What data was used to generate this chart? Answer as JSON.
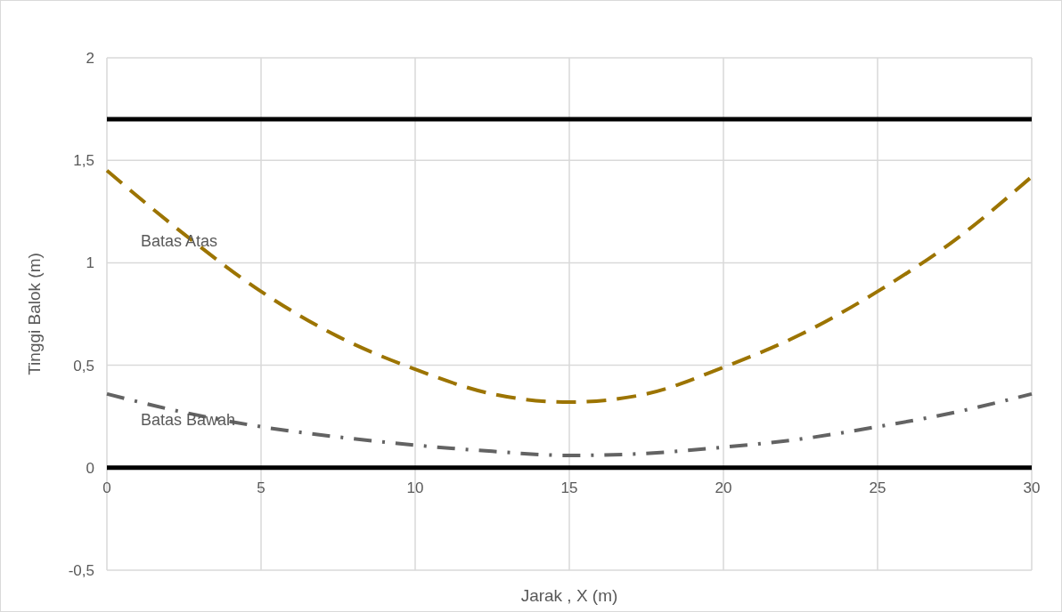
{
  "chart_data": {
    "type": "line",
    "xlabel": "Jarak , X (m)",
    "ylabel": "Tinggi Balok (m)",
    "x": [
      0,
      2.5,
      5,
      7.5,
      10,
      12.5,
      15,
      17.5,
      20,
      22.5,
      25,
      27.5,
      30
    ],
    "series": [
      {
        "name": "Batas Atas",
        "color": "#9c7400",
        "line_style": "dashed",
        "values": [
          1.45,
          1.14,
          0.86,
          0.64,
          0.48,
          0.36,
          0.32,
          0.36,
          0.49,
          0.65,
          0.86,
          1.11,
          1.42
        ]
      },
      {
        "name": "Batas Bawah",
        "color": "#636363",
        "line_style": "dashed",
        "values": [
          0.36,
          0.27,
          0.2,
          0.15,
          0.11,
          0.08,
          0.06,
          0.07,
          0.1,
          0.14,
          0.2,
          0.27,
          0.36
        ]
      }
    ],
    "xlim": [
      0,
      30
    ],
    "xticks": [
      0,
      5,
      10,
      15,
      20,
      25,
      30
    ],
    "ylim": [
      -0.5,
      2
    ],
    "yticks": [
      {
        "value": -0.5,
        "label": "-0,5"
      },
      0,
      {
        "value": 0.5,
        "label": "0,5"
      },
      1,
      {
        "value": 1.5,
        "label": "1,5"
      },
      2
    ],
    "grid": true,
    "marker": "none",
    "ref_lines": [
      {
        "axis": "y",
        "value": 1.7,
        "color": "#000000"
      },
      {
        "axis": "y",
        "value": 0,
        "color": "#000000"
      }
    ]
  }
}
